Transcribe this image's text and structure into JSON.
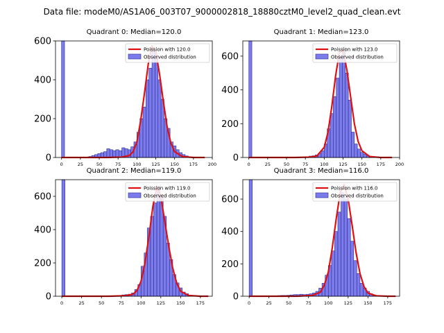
{
  "figure_title": "Data file: modeM0/AS1A06_003T07_9000002818_18880cztM0_level2_quad_clean.evt",
  "colors": {
    "bar_fill": "#7b7bea",
    "bar_edge": "#2a2a9a",
    "poisson_line": "#e01010",
    "axes": "#000000"
  },
  "chart_data": [
    {
      "type": "bar",
      "title": "Quadrant 0: Median=120.0",
      "xlim": [
        -8,
        200
      ],
      "ylim": [
        0,
        600
      ],
      "xticks": [
        0,
        25,
        50,
        75,
        100,
        125,
        150,
        175,
        200
      ],
      "yticks": [
        0,
        200,
        400,
        600
      ],
      "bin_width": 4,
      "legend_loc": "upper right",
      "legend": [
        "Poission with 120.0",
        "Observed distribution"
      ],
      "zero_bin": {
        "x": 0,
        "value": 620
      },
      "hist_x": [
        36,
        40,
        44,
        48,
        52,
        56,
        60,
        64,
        68,
        72,
        76,
        80,
        84,
        88,
        92,
        96,
        100,
        104,
        108,
        112,
        116,
        120,
        124,
        128,
        132,
        136,
        140,
        144,
        148,
        152,
        156,
        160,
        164,
        168
      ],
      "hist_y": [
        5,
        10,
        15,
        20,
        25,
        30,
        45,
        40,
        35,
        40,
        35,
        50,
        45,
        40,
        55,
        80,
        130,
        200,
        260,
        400,
        460,
        560,
        520,
        400,
        300,
        200,
        150,
        80,
        60,
        40,
        25,
        15,
        8,
        3
      ],
      "poisson_x": [
        0,
        60,
        80,
        90,
        95,
        100,
        105,
        110,
        115,
        120,
        125,
        130,
        135,
        140,
        145,
        150,
        160,
        175,
        190
      ],
      "poisson_y": [
        0,
        0,
        2,
        10,
        30,
        80,
        190,
        330,
        480,
        575,
        545,
        430,
        290,
        160,
        75,
        30,
        5,
        0,
        0
      ]
    },
    {
      "type": "bar",
      "title": "Quadrant 1: Median=123.0",
      "xlim": [
        -8,
        200
      ],
      "ylim": [
        0,
        690
      ],
      "xticks": [
        0,
        25,
        50,
        75,
        100,
        125,
        150,
        175,
        200
      ],
      "yticks": [
        0,
        200,
        400,
        600
      ],
      "bin_width": 4,
      "legend_loc": "upper right",
      "legend": [
        "Poission with 123.0",
        "Observed distribution"
      ],
      "zero_bin": {
        "x": 0,
        "value": 700
      },
      "hist_x": [
        76,
        80,
        84,
        88,
        92,
        96,
        100,
        104,
        108,
        112,
        116,
        120,
        124,
        128,
        132,
        136,
        140,
        144,
        148,
        152,
        156,
        160,
        164
      ],
      "hist_y": [
        5,
        8,
        10,
        15,
        25,
        40,
        80,
        170,
        260,
        360,
        470,
        600,
        650,
        500,
        340,
        150,
        80,
        50,
        30,
        20,
        12,
        6,
        3
      ],
      "poisson_x": [
        0,
        60,
        80,
        90,
        100,
        105,
        110,
        115,
        120,
        125,
        130,
        135,
        140,
        145,
        150,
        160,
        175,
        190
      ],
      "poisson_y": [
        0,
        0,
        2,
        8,
        60,
        150,
        300,
        480,
        620,
        640,
        520,
        360,
        200,
        95,
        40,
        6,
        0,
        0
      ]
    },
    {
      "type": "bar",
      "title": "Quadrant 2: Median=119.0",
      "xlim": [
        -8,
        190
      ],
      "ylim": [
        0,
        700
      ],
      "xticks": [
        0,
        25,
        50,
        75,
        100,
        125,
        150,
        175
      ],
      "yticks": [
        0,
        200,
        400,
        600
      ],
      "bin_width": 4,
      "legend_loc": "upper right",
      "legend": [
        "Poission with 119.0",
        "Observed distribution"
      ],
      "zero_bin": {
        "x": 0,
        "value": 720
      },
      "hist_x": [
        72,
        76,
        80,
        84,
        88,
        92,
        96,
        100,
        104,
        108,
        112,
        116,
        120,
        124,
        128,
        132,
        136,
        140,
        144,
        148,
        152,
        156,
        160,
        164
      ],
      "hist_y": [
        5,
        8,
        10,
        12,
        20,
        40,
        70,
        180,
        260,
        410,
        480,
        560,
        660,
        610,
        480,
        320,
        220,
        130,
        80,
        50,
        25,
        15,
        6,
        3
      ],
      "poisson_x": [
        0,
        60,
        80,
        90,
        95,
        100,
        105,
        110,
        115,
        120,
        125,
        130,
        135,
        140,
        145,
        150,
        160,
        175,
        185
      ],
      "poisson_y": [
        0,
        0,
        3,
        12,
        35,
        90,
        200,
        360,
        540,
        660,
        600,
        450,
        300,
        170,
        80,
        30,
        5,
        0,
        0
      ]
    },
    {
      "type": "bar",
      "title": "Quadrant 3: Median=116.0",
      "xlim": [
        -8,
        190
      ],
      "ylim": [
        0,
        720
      ],
      "xticks": [
        0,
        25,
        50,
        75,
        100,
        125,
        150,
        175
      ],
      "yticks": [
        0,
        200,
        400,
        600
      ],
      "bin_width": 4,
      "legend_loc": "upper right",
      "legend": [
        "Poission with 116.0",
        "Observed distribution"
      ],
      "zero_bin": {
        "x": 0,
        "value": 740
      },
      "hist_x": [
        32,
        36,
        40,
        44,
        48,
        52,
        56,
        60,
        64,
        68,
        72,
        76,
        80,
        84,
        88,
        92,
        96,
        100,
        104,
        108,
        112,
        116,
        120,
        124,
        128,
        132,
        136,
        140,
        144,
        148,
        152,
        156,
        160
      ],
      "hist_y": [
        3,
        4,
        5,
        5,
        6,
        8,
        10,
        10,
        12,
        10,
        12,
        15,
        20,
        30,
        50,
        80,
        130,
        190,
        280,
        400,
        520,
        640,
        600,
        480,
        340,
        220,
        140,
        80,
        50,
        30,
        15,
        8,
        3
      ],
      "poisson_x": [
        0,
        60,
        80,
        90,
        95,
        100,
        105,
        110,
        115,
        120,
        125,
        130,
        135,
        140,
        145,
        150,
        160,
        175,
        185
      ],
      "poisson_y": [
        0,
        0,
        5,
        25,
        70,
        150,
        300,
        480,
        640,
        690,
        600,
        440,
        270,
        140,
        60,
        20,
        3,
        0,
        0
      ]
    }
  ]
}
